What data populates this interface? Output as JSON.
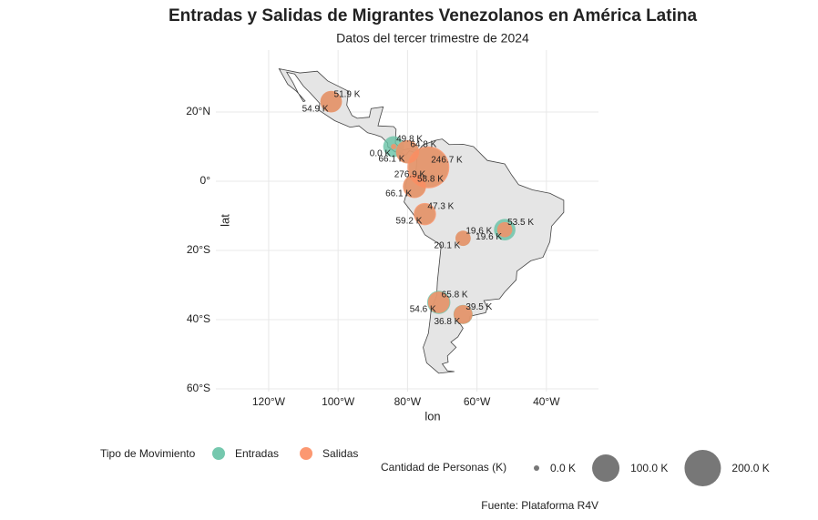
{
  "chart_data": {
    "type": "map-bubble",
    "title": "Entradas y Salidas de Migrantes Venezolanos en América Latina",
    "subtitle": "Datos del tercer trimestre de 2024",
    "x_label": "lon",
    "y_label": "lat",
    "xlim": [
      -135.2,
      -25
    ],
    "ylim": [
      -60.8,
      37.9
    ],
    "xticks": [
      {
        "value": -120,
        "label": "120°W"
      },
      {
        "value": -100,
        "label": "100°W"
      },
      {
        "value": -80,
        "label": "80°W"
      },
      {
        "value": -60,
        "label": "60°W"
      },
      {
        "value": -40,
        "label": "40°W"
      }
    ],
    "yticks": [
      {
        "value": -60,
        "label": "60°S"
      },
      {
        "value": -40,
        "label": "40°S"
      },
      {
        "value": -20,
        "label": "20°S"
      },
      {
        "value": 0,
        "label": "0°"
      },
      {
        "value": 20,
        "label": "20°N"
      }
    ],
    "grid": true,
    "x": [
      -102,
      -84,
      -80,
      -74,
      -78,
      -75,
      -64,
      -52,
      -71,
      -64
    ],
    "y": [
      23,
      10,
      8.5,
      4,
      -1.5,
      -9.5,
      -16.5,
      -14,
      -35,
      -38.5
    ],
    "series": [
      {
        "name": "Entradas",
        "color": "#66c2a5",
        "label_color": "#00008b",
        "values": [
          51.9,
          49.8,
          64.8,
          246.7,
          58.8,
          47.3,
          19.6,
          53.5,
          65.8,
          39.5
        ],
        "value_labels": [
          "51.9 K",
          "49.8 K",
          "64.8 K",
          "246.7 K",
          "58.8 K",
          "47.3 K",
          "19.6 K",
          "53.5 K",
          "65.8 K",
          "39.5 K"
        ]
      },
      {
        "name": "Salidas",
        "color": "#fc8d62",
        "label_color": "#8b0000",
        "values": [
          54.9,
          0.0,
          66.1,
          276.9,
          66.1,
          59.2,
          20.1,
          19.6,
          54.6,
          36.8
        ],
        "value_labels": [
          "54.9 K",
          "0.0 K",
          "66.1 K",
          "276.9 K",
          "66.1 K",
          "59.2 K",
          "20.1 K",
          "19.6 K",
          "54.6 K",
          "36.8 K"
        ]
      }
    ],
    "color_legend_title": "Tipo de Movimiento",
    "size_legend": {
      "title": "Cantidad de Personas (K)",
      "ticks": [
        {
          "value": 0,
          "label": "0.0 K"
        },
        {
          "value": 100,
          "label": "100.0 K"
        },
        {
          "value": 200,
          "label": "200.0 K"
        }
      ]
    },
    "legend_position": "bottom",
    "caption": "Fuente: Plataforma R4V"
  }
}
